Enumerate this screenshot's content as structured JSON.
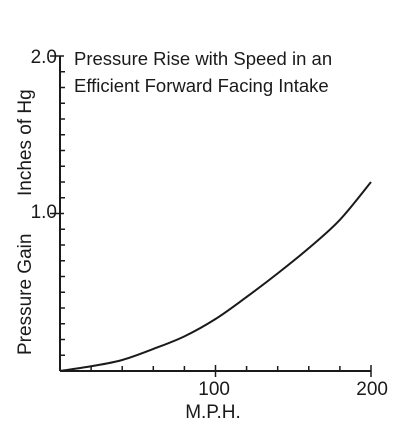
{
  "chart_data": {
    "type": "line",
    "title_lines": [
      "Pressure Rise with Speed in an",
      "Efficient Forward Facing Intake"
    ],
    "xlabel": "M.P.H.",
    "ylabel_parts": [
      "Pressure Gain",
      "Inches of Hg"
    ],
    "xlim": [
      0,
      200
    ],
    "ylim": [
      0,
      2.0
    ],
    "x_tick_labels": [
      "100",
      "200"
    ],
    "y_tick_labels": [
      "1.0",
      "2.0"
    ],
    "grid": false,
    "series": [
      {
        "x": [
          0,
          20,
          40,
          60,
          80,
          100,
          120,
          140,
          160,
          180,
          200
        ],
        "values": [
          0,
          0.03,
          0.07,
          0.14,
          0.22,
          0.33,
          0.47,
          0.62,
          0.78,
          0.96,
          1.2
        ]
      }
    ]
  }
}
